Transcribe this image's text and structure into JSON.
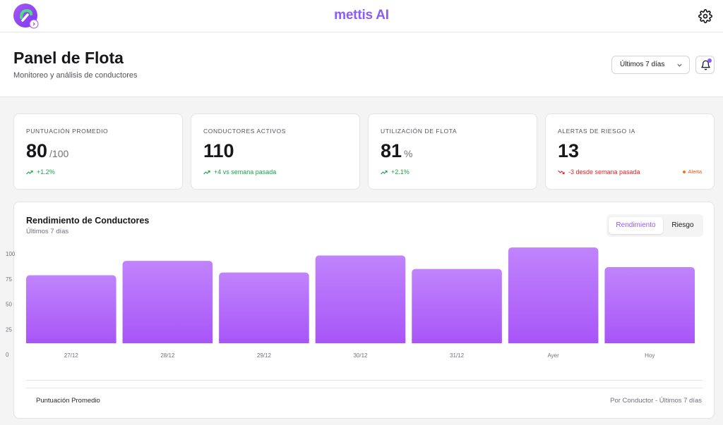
{
  "topbar": {
    "brand": "mettis AI",
    "logo_icon": "mettis-logo-icon",
    "settings_icon": "gear-icon"
  },
  "header": {
    "title": "Panel de Flota",
    "subtitle": "Monitoreo y análisis de conductores",
    "range_select": {
      "value": "Últimos 7 días"
    },
    "notifications_icon": "bell-icon"
  },
  "kpis": [
    {
      "label": "PUNTUACIÓN PROMEDIO",
      "value": "80",
      "unit": "/100",
      "trend": "+1.2%",
      "direction": "up"
    },
    {
      "label": "CONDUCTORES ACTIVOS",
      "value": "110",
      "unit": "",
      "trend": "+4 vs semana pasada",
      "direction": "up"
    },
    {
      "label": "UTILIZACIÓN DE FLOTA",
      "value": "81",
      "unit": "%",
      "trend": "+2.1%",
      "direction": "up"
    },
    {
      "label": "ALERTAS DE RIESGO IA",
      "value": "13",
      "unit": "",
      "trend": "-3 desde semana pasada",
      "direction": "down",
      "tag": "Alerta"
    }
  ],
  "chart_panel": {
    "title": "Rendimiento de Conductores",
    "subtitle": "Últimos 7 días",
    "toggle": {
      "active": "Rendimiento",
      "inactive": "Riesgo"
    },
    "footer_left": "Puntuación Promedio",
    "footer_right": "Por Conductor - Últimos 7 días"
  },
  "chart_data": {
    "type": "bar",
    "categories": [
      "27/12",
      "28/12",
      "29/12",
      "30/12",
      "31/12",
      "Ayer",
      "Hoy"
    ],
    "values": [
      76,
      92,
      79,
      98,
      83,
      107,
      85
    ],
    "yticks": [
      "100",
      "75",
      "50",
      "25",
      "0"
    ],
    "ylim": [
      0,
      100
    ],
    "grid": false,
    "colors": {
      "bar_top": "#c084fc",
      "bar_bottom": "#a855f7"
    }
  },
  "colors": {
    "accent": "#8b5cf6",
    "up": "#16a34a",
    "down": "#dc2626",
    "alert": "#ea580c"
  }
}
